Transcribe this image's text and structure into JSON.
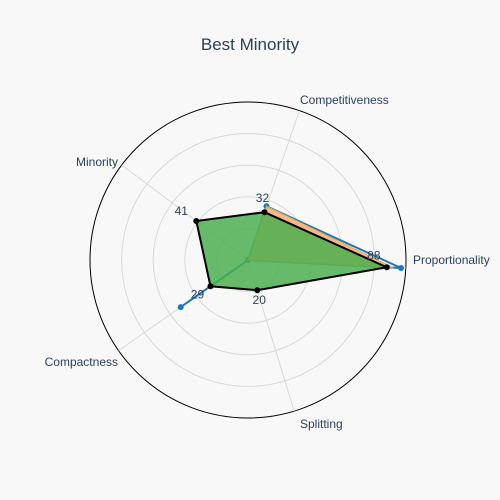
{
  "chart_data": {
    "type": "radar",
    "title": "Best Minority",
    "axes": [
      "Proportionality",
      "Competitiveness",
      "Minority",
      "Compactness",
      "Splitting"
    ],
    "range": [
      0,
      100
    ],
    "gridlines": [
      20,
      40,
      60,
      80,
      100
    ],
    "series": [
      {
        "values": [
          97,
          36,
          0,
          52,
          0
        ],
        "color": "#1f77b4",
        "fill": "none",
        "style": "line-markers"
      },
      {
        "values": [
          92,
          36,
          0,
          0,
          0
        ],
        "color": "#f4a35a",
        "fill": "#f5b072",
        "style": "fill"
      },
      {
        "values": [
          88,
          32,
          41,
          29,
          20
        ],
        "color": "#000000",
        "fill": "#4caf50",
        "style": "fill-line-markers"
      }
    ],
    "data_labels": [
      {
        "axis": "Proportionality",
        "text": "88"
      },
      {
        "axis": "Competitiveness",
        "text": "32"
      },
      {
        "axis": "Minority",
        "text": "41"
      },
      {
        "axis": "Compactness",
        "text": "29"
      },
      {
        "axis": "Splitting",
        "text": "20"
      }
    ],
    "colors": {
      "text": "#2a3f5f",
      "grid": "#d9d9d9",
      "outer_ring": "#000000",
      "background": "#f8f8f8"
    }
  }
}
